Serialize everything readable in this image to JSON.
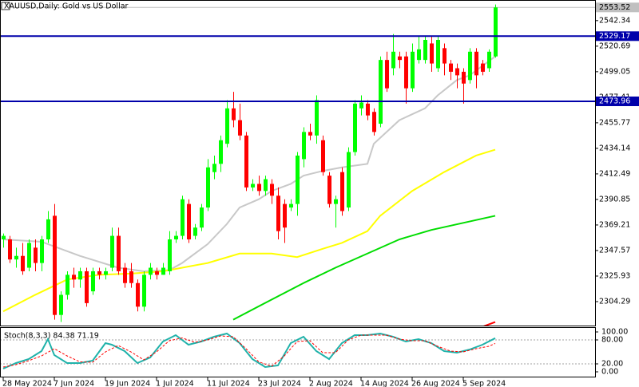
{
  "chart_data": [
    {
      "type": "candlestick",
      "title": "XAUUSD,Daily:  Gold vs US Dollar",
      "categories": [
        "28 May 2024",
        null,
        null,
        null,
        null,
        null,
        null,
        null,
        "7 Jun 2024",
        null,
        null,
        null,
        null,
        null,
        null,
        null,
        "19 Jun 2024",
        null,
        null,
        null,
        null,
        null,
        null,
        null,
        "1 Jul 2024",
        null,
        null,
        null,
        null,
        null,
        null,
        null,
        "11 Jul 2024",
        null,
        null,
        null,
        null,
        null,
        null,
        null,
        "23 Jul 2024",
        null,
        null,
        null,
        null,
        null,
        null,
        null,
        "2 Aug 2024",
        null,
        null,
        null,
        null,
        null,
        null,
        null,
        "14 Aug 2024",
        null,
        null,
        null,
        null,
        null,
        null,
        null,
        "26 Aug 2024",
        null,
        null,
        null,
        null,
        null,
        null,
        null,
        "5 Sep 2024",
        null,
        null,
        null,
        null,
        null
      ],
      "open": [
        2357,
        2357,
        2340,
        2343,
        2333,
        2350,
        2337,
        2357,
        2377,
        2293,
        2310,
        2327,
        2323,
        2330,
        2313,
        2330,
        2327,
        2333,
        2360,
        2333,
        2330,
        2320,
        2300,
        2327,
        2330,
        2327,
        2330,
        2357,
        2360,
        2387,
        2360,
        2367,
        2384,
        2414,
        2421,
        2438,
        2468,
        2458,
        2445,
        2401,
        2404,
        2398,
        2404,
        2394,
        2387,
        2384,
        2387,
        2425,
        2448,
        2445,
        2441,
        2411,
        2387,
        2414,
        2384,
        2431,
        2468,
        2472,
        2465,
        2455,
        2509,
        2502,
        2512,
        2512,
        2485,
        2509,
        2509,
        2523,
        2502,
        2519,
        2506,
        2502,
        2499,
        2492,
        2516,
        2506,
        2502,
        2512
      ],
      "high": [
        2362,
        2360,
        2350,
        2354,
        2357,
        2357,
        2360,
        2381,
        2387,
        2313,
        2330,
        2333,
        2333,
        2333,
        2333,
        2333,
        2333,
        2367,
        2367,
        2337,
        2337,
        2323,
        2330,
        2337,
        2333,
        2337,
        2364,
        2364,
        2394,
        2391,
        2370,
        2387,
        2425,
        2428,
        2445,
        2475,
        2482,
        2472,
        2448,
        2408,
        2411,
        2411,
        2408,
        2401,
        2391,
        2391,
        2431,
        2452,
        2455,
        2479,
        2445,
        2414,
        2394,
        2418,
        2435,
        2475,
        2479,
        2475,
        2468,
        2512,
        2516,
        2531,
        2516,
        2516,
        2523,
        2529,
        2529,
        2529,
        2529,
        2523,
        2509,
        2506,
        2502,
        2519,
        2519,
        2509,
        2518,
        2556
      ],
      "low": [
        2350,
        2337,
        2333,
        2327,
        2330,
        2330,
        2330,
        2354,
        2289,
        2287,
        2306,
        2316,
        2316,
        2300,
        2310,
        2323,
        2323,
        2330,
        2327,
        2316,
        2316,
        2296,
        2296,
        2323,
        2323,
        2327,
        2327,
        2354,
        2357,
        2354,
        2357,
        2364,
        2381,
        2408,
        2414,
        2435,
        2452,
        2441,
        2398,
        2398,
        2394,
        2394,
        2387,
        2357,
        2354,
        2381,
        2377,
        2418,
        2441,
        2438,
        2411,
        2384,
        2367,
        2377,
        2381,
        2428,
        2462,
        2458,
        2445,
        2452,
        2482,
        2496,
        2502,
        2472,
        2482,
        2506,
        2506,
        2499,
        2499,
        2496,
        2492,
        2485,
        2472,
        2489,
        2485,
        2496,
        2499,
        2511
      ],
      "close": [
        2360,
        2340,
        2343,
        2330,
        2354,
        2337,
        2357,
        2374,
        2293,
        2310,
        2327,
        2323,
        2330,
        2303,
        2330,
        2327,
        2330,
        2360,
        2330,
        2320,
        2320,
        2300,
        2327,
        2333,
        2327,
        2333,
        2357,
        2360,
        2391,
        2357,
        2367,
        2384,
        2418,
        2421,
        2441,
        2468,
        2458,
        2445,
        2401,
        2404,
        2398,
        2408,
        2394,
        2364,
        2367,
        2387,
        2428,
        2448,
        2445,
        2475,
        2414,
        2387,
        2391,
        2381,
        2431,
        2472,
        2473,
        2462,
        2448,
        2509,
        2485,
        2516,
        2509,
        2485,
        2516,
        2518,
        2526,
        2506,
        2526,
        2506,
        2499,
        2496,
        2489,
        2516,
        2496,
        2499,
        2516,
        2553.52
      ],
      "up_color": "#00ff00",
      "down_color": "#ff0000",
      "ylim": [
        2284.0,
        2559.8
      ],
      "yticks": [
        2542.34,
        2520.69,
        2499.05,
        2477.41,
        2455.77,
        2434.14,
        2412.49,
        2390.85,
        2369.21,
        2347.57,
        2325.93,
        2304.29
      ],
      "series": [
        {
          "color": "#c8c8c8",
          "x": [
            0,
            6,
            12,
            18,
            22,
            26,
            28,
            32,
            35,
            37,
            40,
            42,
            45,
            47,
            50,
            53,
            57,
            58,
            62,
            66,
            68,
            71,
            73,
            77
          ],
          "values": [
            2357,
            2355,
            2343,
            2333,
            2330,
            2331,
            2337,
            2353,
            2370,
            2384,
            2391,
            2398,
            2404,
            2411,
            2415,
            2418,
            2421,
            2438,
            2458,
            2468,
            2479,
            2492,
            2496,
            2512
          ]
        },
        {
          "color": "#ffff00",
          "x": [
            0,
            5,
            10,
            15,
            20,
            25,
            32,
            37,
            42,
            46,
            50,
            53,
            57,
            59,
            64,
            69,
            74,
            77
          ],
          "values": [
            2296,
            2310,
            2323,
            2327,
            2328,
            2330,
            2337,
            2345,
            2345,
            2342,
            2349,
            2354,
            2364,
            2377,
            2398,
            2414,
            2428,
            2433
          ]
        },
        {
          "color": "#00dd00",
          "x": [
            36,
            42,
            47,
            52,
            57,
            62,
            67,
            72,
            77
          ],
          "values": [
            2289,
            2306,
            2320,
            2333,
            2345,
            2357,
            2365,
            2371,
            2377
          ]
        },
        {
          "color": "#ff0000",
          "x": [
            75,
            77
          ],
          "values": [
            2283,
            2287
          ]
        }
      ],
      "hlines": [
        {
          "value": 2529.17,
          "label": "2529.17",
          "color": "#0000aa"
        },
        {
          "value": 2473.96,
          "label": "2473.96",
          "color": "#0000aa"
        }
      ],
      "last_price": {
        "value": 2553.52,
        "label": "2553.52",
        "color": "#c0c0c0"
      }
    },
    {
      "type": "line",
      "title": "Stoch(8,3,3) 84.38 71.19",
      "ylim": [
        -12,
        110
      ],
      "yticks": [
        {
          "value": 100,
          "label": "100.00"
        },
        {
          "value": 80,
          "label": "80.00"
        },
        {
          "value": 20,
          "label": "20.00"
        },
        {
          "value": 0,
          "label": "0.00"
        }
      ],
      "levels": [
        80,
        20
      ],
      "series": [
        {
          "color": "#20b2aa",
          "x": [
            0,
            2,
            4,
            6,
            7,
            8,
            10,
            12,
            14,
            16,
            17,
            19,
            21,
            23,
            25,
            27,
            29,
            31,
            33,
            35,
            37,
            39,
            41,
            43,
            45,
            47,
            49,
            51,
            53,
            55,
            57,
            59,
            61,
            63,
            65,
            67,
            69,
            71,
            73,
            75,
            77
          ],
          "values": [
            8,
            22,
            32,
            52,
            82,
            42,
            22,
            22,
            28,
            72,
            68,
            52,
            22,
            36,
            76,
            92,
            68,
            76,
            88,
            96,
            72,
            32,
            12,
            16,
            72,
            88,
            52,
            32,
            72,
            92,
            92,
            96,
            88,
            76,
            82,
            72,
            52,
            48,
            56,
            68,
            84.38
          ]
        },
        {
          "color": "#ff0000",
          "dash": true,
          "x": [
            0,
            2,
            4,
            6,
            8,
            10,
            12,
            14,
            16,
            18,
            20,
            22,
            24,
            26,
            28,
            30,
            32,
            34,
            36,
            38,
            40,
            42,
            44,
            46,
            48,
            50,
            52,
            54,
            56,
            58,
            60,
            62,
            64,
            66,
            68,
            70,
            72,
            74,
            76,
            77
          ],
          "values": [
            12,
            18,
            28,
            40,
            58,
            40,
            25,
            24,
            50,
            66,
            50,
            30,
            50,
            78,
            85,
            74,
            80,
            90,
            88,
            58,
            25,
            14,
            40,
            76,
            78,
            48,
            48,
            80,
            92,
            92,
            92,
            82,
            78,
            78,
            64,
            52,
            50,
            58,
            64,
            71.19
          ]
        }
      ]
    }
  ]
}
